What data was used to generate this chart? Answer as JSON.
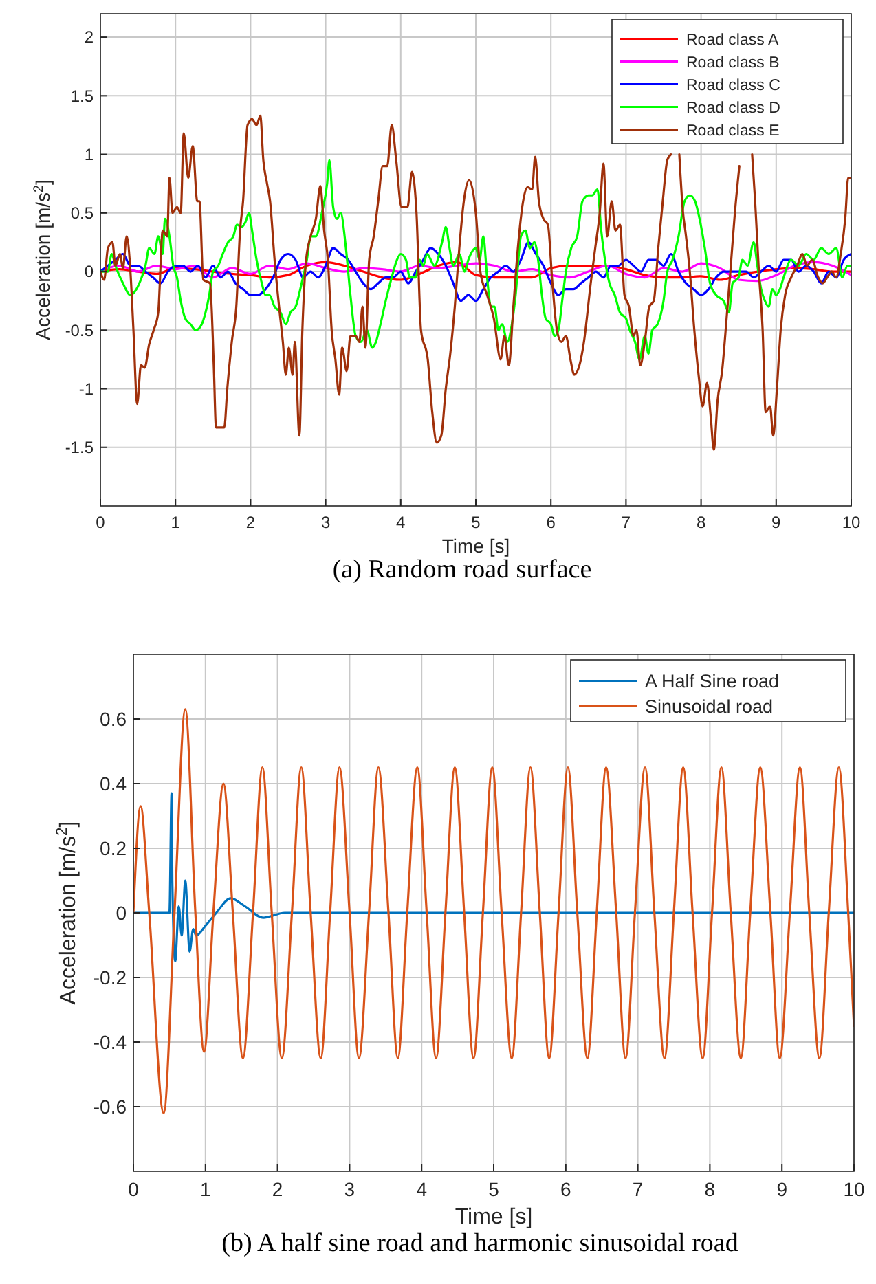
{
  "chart_data": [
    {
      "type": "line",
      "title": "(a) Random road surface",
      "xlabel": "Time [s]",
      "ylabel": "Acceleration [m/s$^{2}$]",
      "xlim": [
        0,
        10
      ],
      "xticks": [
        0,
        1,
        2,
        3,
        4,
        5,
        6,
        7,
        8,
        9,
        10
      ],
      "ylim": [
        -2,
        2.2
      ],
      "yticks": [
        -1.5,
        -1,
        -0.5,
        0,
        0.5,
        1,
        1.5,
        2
      ],
      "grid": true,
      "legend": "top right",
      "marker": "none",
      "line_style": "solid",
      "x": [
        0,
        0.1,
        0.2,
        0.3,
        0.4,
        0.5,
        0.6,
        0.7,
        0.8,
        0.9,
        1,
        1.1,
        1.2,
        1.3,
        1.4,
        1.5,
        1.6,
        1.7,
        1.8,
        1.9,
        2,
        2.1,
        2.2,
        2.3,
        2.4,
        2.5,
        2.6,
        2.7,
        2.8,
        2.9,
        3,
        3.1,
        3.2,
        3.3,
        3.4,
        3.5,
        3.6,
        3.7,
        3.8,
        3.9,
        4,
        4.1,
        4.2,
        4.3,
        4.4,
        4.5,
        4.6,
        4.7,
        4.8,
        4.9,
        5,
        5.1,
        5.2,
        5.3,
        5.4,
        5.5,
        5.6,
        5.7,
        5.8,
        5.9,
        6,
        6.1,
        6.2,
        6.3,
        6.4,
        6.5,
        6.6,
        6.7,
        6.8,
        6.9,
        7,
        7.1,
        7.2,
        7.3,
        7.4,
        7.5,
        7.6,
        7.7,
        7.8,
        7.9,
        8,
        8.1,
        8.2,
        8.3,
        8.4,
        8.5,
        8.6,
        8.7,
        8.8,
        8.9,
        9,
        9.1,
        9.2,
        9.3,
        9.4,
        9.5,
        9.6,
        9.7,
        9.8,
        9.9,
        10
      ],
      "series": [
        {
          "name": "Road class A",
          "color": "#ff0000",
          "x": [
            0,
            0.25,
            0.5,
            0.75,
            1,
            1.25,
            1.5,
            1.75,
            2,
            2.25,
            2.5,
            2.75,
            3,
            3.25,
            3.5,
            3.75,
            4,
            4.25,
            4.5,
            4.75,
            5,
            5.25,
            5.5,
            5.75,
            6,
            6.25,
            6.5,
            6.75,
            7,
            7.25,
            7.5,
            7.75,
            8,
            8.25,
            8.5,
            8.75,
            9,
            9.25,
            9.5,
            9.75,
            10
          ],
          "values": [
            0,
            0.02,
            0.0,
            -0.02,
            0.03,
            0.02,
            0.0,
            -0.02,
            -0.03,
            -0.05,
            -0.03,
            0.05,
            0.08,
            0.05,
            0.0,
            -0.05,
            -0.07,
            -0.02,
            0.05,
            0.08,
            -0.03,
            -0.05,
            -0.05,
            -0.05,
            0.03,
            0.05,
            0.05,
            0.05,
            0.02,
            -0.03,
            -0.05,
            -0.05,
            -0.04,
            -0.07,
            -0.03,
            0.0,
            0.02,
            0.03,
            0.02,
            0.0,
            0.0
          ]
        },
        {
          "name": "Road class B",
          "color": "#ff00ff",
          "x": [
            0,
            0.25,
            0.5,
            0.75,
            1,
            1.25,
            1.5,
            1.75,
            2,
            2.25,
            2.5,
            2.75,
            3,
            3.25,
            3.5,
            3.75,
            4,
            4.25,
            4.5,
            4.75,
            5,
            5.25,
            5.5,
            5.75,
            6,
            6.25,
            6.5,
            6.75,
            7,
            7.25,
            7.5,
            7.75,
            8,
            8.25,
            8.5,
            8.75,
            9,
            9.25,
            9.5,
            9.75,
            10
          ],
          "values": [
            0,
            0.05,
            0.0,
            0.05,
            0.02,
            0.05,
            -0.05,
            0.03,
            -0.02,
            0.05,
            0.02,
            0.07,
            0.03,
            0.0,
            0.03,
            0.02,
            0.0,
            0.05,
            0.03,
            0.05,
            0.07,
            0.05,
            0.0,
            0.02,
            -0.03,
            -0.05,
            0.0,
            0.05,
            -0.02,
            -0.05,
            0.03,
            0.0,
            0.07,
            0.03,
            -0.07,
            -0.08,
            -0.03,
            0.05,
            0.08,
            0.05,
            -0.03
          ]
        },
        {
          "name": "Road class C",
          "color": "#0000ff",
          "values": [
            0,
            0.05,
            0.1,
            0.15,
            0.05,
            0.05,
            0.0,
            -0.05,
            -0.1,
            0.0,
            0.05,
            0.05,
            0.0,
            0.05,
            -0.05,
            0.05,
            -0.05,
            0.0,
            -0.1,
            -0.15,
            -0.2,
            -0.2,
            -0.15,
            -0.05,
            0.1,
            0.15,
            0.1,
            -0.05,
            0.0,
            -0.05,
            0.05,
            0.2,
            0.15,
            0.1,
            0.0,
            -0.1,
            -0.15,
            -0.1,
            -0.05,
            -0.05,
            0.0,
            -0.1,
            0.0,
            0.1,
            0.2,
            0.15,
            0.05,
            -0.1,
            -0.25,
            -0.2,
            -0.25,
            -0.15,
            -0.05,
            0.0,
            0.05,
            0.0,
            0.1,
            0.25,
            0.15,
            0.05,
            -0.1,
            -0.2,
            -0.15,
            -0.15,
            -0.1,
            -0.05,
            0.0,
            -0.05,
            0.05,
            0.05,
            0.1,
            0.05,
            0.0,
            0.1,
            0.1,
            0.05,
            0.15,
            0.0,
            -0.1,
            -0.15,
            -0.2,
            -0.15,
            -0.05,
            0.0,
            0.0,
            0.0,
            0.0,
            -0.05,
            0.0,
            0.05,
            0.0,
            0.1,
            0.1,
            0.0,
            0.05,
            0.0,
            -0.1,
            0.0,
            -0.05,
            0.1,
            0.15
          ]
        },
        {
          "name": "Road class D",
          "color": "#00ff00",
          "x": [
            0,
            0.1,
            0.15,
            0.2,
            0.3,
            0.4,
            0.48,
            0.55,
            0.6,
            0.65,
            0.72,
            0.77,
            0.83,
            0.86,
            0.92,
            0.97,
            1.02,
            1.07,
            1.13,
            1.2,
            1.27,
            1.35,
            1.4,
            1.45,
            1.5,
            1.57,
            1.63,
            1.7,
            1.77,
            1.82,
            1.88,
            1.93,
            1.98,
            2.02,
            2.08,
            2.15,
            2.2,
            2.25,
            2.32,
            2.4,
            2.47,
            2.53,
            2.6,
            2.68,
            2.75,
            2.8,
            2.87,
            2.95,
            3.02,
            3.05,
            3.1,
            3.15,
            3.2,
            3.27,
            3.33,
            3.4,
            3.47,
            3.55,
            3.62,
            3.67,
            3.73,
            3.8,
            3.88,
            3.95,
            4,
            4.07,
            4.12,
            4.2,
            4.25,
            4.3,
            4.35,
            4.45,
            4.55,
            4.6,
            4.65,
            4.7,
            4.78,
            4.85,
            4.9,
            5,
            5.05,
            5.1,
            5.15,
            5.2,
            5.25,
            5.3,
            5.35,
            5.42,
            5.48,
            5.53,
            5.6,
            5.66,
            5.72,
            5.78,
            5.83,
            5.88,
            5.93,
            6,
            6.05,
            6.1,
            6.15,
            6.2,
            6.27,
            6.35,
            6.42,
            6.5,
            6.55,
            6.62,
            6.67,
            6.72,
            6.78,
            6.85,
            6.92,
            7,
            7.05,
            7.12,
            7.18,
            7.25,
            7.3,
            7.35,
            7.42,
            7.5,
            7.55,
            7.62,
            7.7,
            7.78,
            7.85,
            7.92,
            7.98,
            8.05,
            8.12,
            8.2,
            8.3,
            8.37,
            8.42,
            8.5,
            8.55,
            8.62,
            8.7,
            8.75,
            8.8,
            8.85,
            8.9,
            8.95,
            9,
            9.05,
            9.1,
            9.2,
            9.3,
            9.4,
            9.5,
            9.6,
            9.7,
            9.8,
            9.88,
            9.95,
            10
          ],
          "values": [
            0,
            0.0,
            0.15,
            0.05,
            -0.1,
            -0.2,
            -0.15,
            -0.05,
            0.05,
            0.2,
            0.15,
            0.3,
            0.15,
            0.45,
            0.3,
            0.05,
            -0.05,
            -0.25,
            -0.4,
            -0.45,
            -0.5,
            -0.45,
            -0.35,
            -0.2,
            0.0,
            0.05,
            0.15,
            0.25,
            0.3,
            0.4,
            0.38,
            0.42,
            0.5,
            0.35,
            0.1,
            -0.1,
            -0.2,
            -0.2,
            -0.3,
            -0.35,
            -0.45,
            -0.35,
            -0.3,
            -0.1,
            0.1,
            0.3,
            0.3,
            0.5,
            0.75,
            0.95,
            0.55,
            0.45,
            0.5,
            0.2,
            -0.2,
            -0.55,
            -0.6,
            -0.5,
            -0.65,
            -0.6,
            -0.45,
            -0.25,
            -0.05,
            0.1,
            0.15,
            0.1,
            -0.05,
            -0.05,
            0.1,
            0.05,
            0.15,
            0.05,
            0.25,
            0.38,
            0.2,
            0.05,
            0.15,
            0.0,
            0.1,
            0.2,
            0.1,
            0.3,
            -0.05,
            -0.3,
            -0.3,
            -0.5,
            -0.45,
            -0.6,
            -0.45,
            -0.2,
            0.3,
            0.35,
            0.2,
            0.25,
            0.1,
            -0.2,
            -0.4,
            -0.45,
            -0.55,
            -0.5,
            -0.25,
            0.0,
            0.2,
            0.3,
            0.6,
            0.65,
            0.65,
            0.7,
            0.35,
            0.1,
            -0.1,
            -0.2,
            -0.35,
            -0.4,
            -0.5,
            -0.6,
            -0.75,
            -0.55,
            -0.7,
            -0.5,
            -0.45,
            -0.25,
            0.0,
            0.1,
            0.3,
            0.6,
            0.65,
            0.6,
            0.45,
            0.2,
            -0.1,
            -0.2,
            -0.25,
            -0.35,
            -0.1,
            -0.05,
            0.1,
            0.05,
            0.25,
            0.05,
            -0.15,
            -0.25,
            -0.3,
            -0.15,
            -0.2,
            -0.15,
            -0.05,
            0.1,
            0.05,
            0.15,
            0.1,
            0.2,
            0.15,
            0.2,
            -0.05,
            0.05,
            0.05
          ]
        },
        {
          "name": "Road class E",
          "color": "#a0300a",
          "x": [
            0,
            0.05,
            0.1,
            0.16,
            0.2,
            0.26,
            0.3,
            0.35,
            0.4,
            0.44,
            0.49,
            0.54,
            0.59,
            0.65,
            0.71,
            0.77,
            0.83,
            0.89,
            0.92,
            0.96,
            1.02,
            1.07,
            1.11,
            1.17,
            1.23,
            1.29,
            1.32,
            1.37,
            1.46,
            1.51,
            1.54,
            1.65,
            1.69,
            1.75,
            1.81,
            1.86,
            1.9,
            1.96,
            2.02,
            2.08,
            2.13,
            2.17,
            2.22,
            2.26,
            2.32,
            2.38,
            2.43,
            2.47,
            2.51,
            2.56,
            2.59,
            2.65,
            2.69,
            2.74,
            2.8,
            2.87,
            2.93,
            2.98,
            3.03,
            3.08,
            3.13,
            3.18,
            3.22,
            3.28,
            3.33,
            3.4,
            3.45,
            3.49,
            3.53,
            3.58,
            3.64,
            3.7,
            3.76,
            3.82,
            3.88,
            3.94,
            4.01,
            4.09,
            4.15,
            4.21,
            4.27,
            4.36,
            4.42,
            4.48,
            4.54,
            4.6,
            4.66,
            4.72,
            4.78,
            4.84,
            4.91,
            5,
            5.06,
            5.15,
            5.24,
            5.33,
            5.38,
            5.44,
            5.5,
            5.56,
            5.63,
            5.69,
            5.75,
            5.79,
            5.84,
            5.9,
            5.96,
            6.02,
            6.08,
            6.14,
            6.2,
            6.26,
            6.31,
            6.38,
            6.44,
            6.53,
            6.59,
            6.65,
            6.7,
            6.75,
            6.81,
            6.86,
            6.92,
            6.98,
            7.04,
            7.1,
            7.14,
            7.19,
            7.25,
            7.31,
            7.37,
            7.43,
            7.49,
            7.55,
            7.6,
            7.65,
            7.71,
            7.76,
            7.79,
            7.85,
            7.91,
            7.97,
            8.02,
            8.08,
            8.13,
            8.17,
            8.22,
            8.28,
            8.34,
            8.39,
            8.45,
            8.51,
            8.6,
            8.68,
            8.72,
            8.77,
            8.82,
            8.86,
            8.92,
            8.96,
            9.01,
            9.06,
            9.12,
            9.2,
            9.28,
            9.35,
            9.41,
            9.48,
            9.56,
            9.62,
            9.68,
            9.74,
            9.8,
            9.86,
            9.92,
            9.96,
            10
          ],
          "values": [
            0,
            -0.07,
            0.2,
            0.25,
            0.05,
            0.15,
            0.03,
            0.3,
            0.0,
            -0.5,
            -1.13,
            -0.8,
            -0.82,
            -0.62,
            -0.5,
            -0.35,
            0.35,
            0.3,
            0.8,
            0.5,
            0.55,
            0.5,
            1.18,
            0.8,
            1.07,
            0.6,
            0.6,
            -0.07,
            -0.1,
            -0.8,
            -1.33,
            -1.33,
            -1.0,
            -0.6,
            -0.3,
            0.35,
            0.6,
            1.25,
            1.3,
            1.25,
            1.33,
            0.95,
            0.75,
            0.6,
            0.1,
            -0.3,
            -0.6,
            -0.88,
            -0.65,
            -0.88,
            -0.6,
            -1.4,
            -0.5,
            0.1,
            0.3,
            0.45,
            0.73,
            0.35,
            0.1,
            -0.5,
            -0.75,
            -1.05,
            -0.65,
            -0.85,
            -0.55,
            -0.55,
            -0.6,
            -0.3,
            -0.65,
            0.1,
            0.3,
            0.6,
            0.9,
            0.9,
            1.25,
            0.95,
            0.55,
            0.55,
            0.85,
            0.5,
            -0.5,
            -0.75,
            -1.2,
            -1.46,
            -1.4,
            -1.0,
            -0.7,
            -0.3,
            0.2,
            0.6,
            0.78,
            0.5,
            0.0,
            -0.2,
            -0.4,
            -0.75,
            -0.55,
            -0.8,
            -0.3,
            0.2,
            0.6,
            0.72,
            0.7,
            0.98,
            0.6,
            0.45,
            0.4,
            -0.1,
            -0.5,
            -0.6,
            -0.55,
            -0.75,
            -0.88,
            -0.8,
            -0.6,
            -0.1,
            0.2,
            0.5,
            0.92,
            0.3,
            0.6,
            0.35,
            0.4,
            -0.2,
            -0.3,
            -0.55,
            -0.5,
            -0.8,
            -0.6,
            -0.3,
            -0.25,
            0.2,
            0.6,
            0.95,
            1.0,
            null,
            1.0,
            0.5,
            0.35,
            0.0,
            -0.5,
            -0.9,
            -1.15,
            -0.95,
            -1.25,
            -1.52,
            -1.1,
            -0.85,
            -0.4,
            0.0,
            0.5,
            0.9,
            null,
            1.0,
            0.6,
            0.0,
            -0.5,
            -1.2,
            -1.15,
            -1.4,
            -1.0,
            -0.5,
            -0.2,
            -0.05,
            0.05,
            0.15,
            0.05,
            0.1,
            -0.05,
            -0.1,
            -0.05,
            0.0,
            -0.05,
            0.15,
            0.45,
            0.8,
            0.8
          ]
        }
      ]
    },
    {
      "type": "line",
      "title": "(b) A half sine road and harmonic sinusoidal road",
      "xlabel": "Time [s]",
      "ylabel": "Acceleration [m/s$^{2}$]",
      "xlim": [
        0,
        10
      ],
      "xticks": [
        0,
        1,
        2,
        3,
        4,
        5,
        6,
        7,
        8,
        9,
        10
      ],
      "ylim": [
        -0.8,
        0.8
      ],
      "yticks": [
        -0.6,
        -0.4,
        -0.2,
        0,
        0.2,
        0.4,
        0.6
      ],
      "grid": true,
      "legend": "top right",
      "marker": "none",
      "line_style": "solid",
      "series": [
        {
          "name": "A Half Sine road",
          "color": "#0072bd",
          "x": [
            0,
            0.5,
            0.53,
            0.54,
            0.58,
            0.63,
            0.67,
            0.72,
            0.78,
            0.83,
            0.87,
            1.0,
            1.15,
            1.35,
            1.55,
            1.8,
            2.1,
            10
          ],
          "values": [
            0,
            0,
            0.37,
            0.1,
            -0.15,
            0.02,
            -0.07,
            0.1,
            -0.12,
            -0.05,
            -0.07,
            -0.04,
            0.0,
            0.045,
            0.02,
            -0.015,
            0,
            0
          ]
        },
        {
          "name": "Sinusoidal road",
          "color": "#d95319",
          "x": [
            0,
            0.1,
            0.22,
            0.42,
            0.57,
            0.72,
            0.86,
            0.98,
            1.11,
            1.25,
            1.38,
            1.52,
            1.66,
            1.79,
            1.92,
            2.06,
            2.2,
            2.33,
            2.46,
            2.6,
            2.73,
            2.86,
            3.0,
            3.13,
            3.27,
            3.4,
            3.54,
            3.67,
            3.8,
            3.94,
            4.07,
            4.2,
            4.33,
            4.46,
            4.59,
            4.72,
            4.85,
            4.98,
            5.11,
            5.25,
            5.38,
            5.51,
            5.64,
            5.77,
            5.9,
            6.03,
            6.16,
            6.3,
            6.43,
            6.56,
            6.7,
            6.83,
            6.96,
            7.1,
            7.23,
            7.37,
            7.5,
            7.63,
            7.76,
            7.9,
            8.03,
            8.16,
            8.29,
            8.43,
            8.56,
            8.7,
            8.84,
            8.97,
            9.11,
            9.25,
            9.38,
            9.52,
            9.65,
            9.79,
            9.92,
            10
          ],
          "values": [
            0,
            0.33,
            0,
            -0.62,
            0,
            0.63,
            0,
            -0.43,
            0,
            0.4,
            0,
            -0.45,
            0,
            0.45,
            0,
            -0.45,
            0,
            0.45,
            0,
            -0.45,
            0,
            0.45,
            0,
            -0.45,
            0,
            0.45,
            0,
            -0.45,
            0,
            0.45,
            0,
            -0.45,
            0,
            0.45,
            0,
            -0.45,
            0,
            0.45,
            0,
            -0.45,
            0,
            0.45,
            0,
            -0.45,
            0,
            0.45,
            0,
            -0.45,
            0,
            0.45,
            0,
            -0.45,
            0,
            0.45,
            0,
            -0.45,
            0,
            0.45,
            0,
            -0.45,
            0,
            0.45,
            0,
            -0.45,
            0,
            0.45,
            0,
            -0.45,
            0,
            0.45,
            0,
            -0.45,
            0,
            0.45,
            0,
            -0.35
          ]
        }
      ]
    }
  ]
}
